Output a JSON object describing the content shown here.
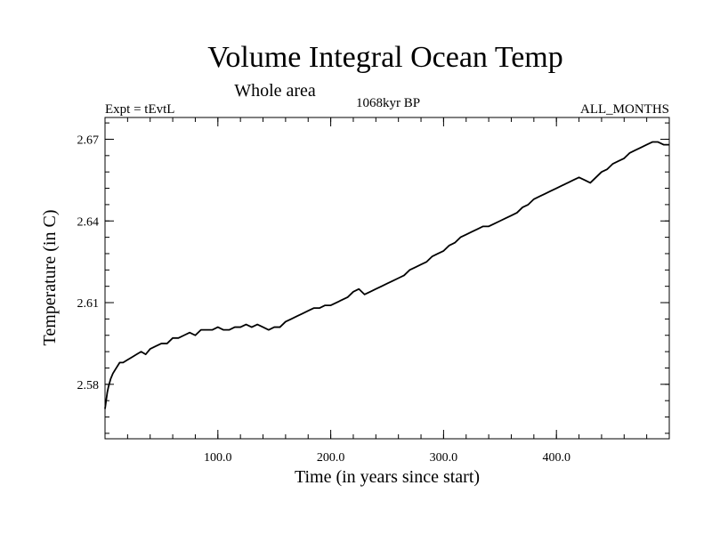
{
  "chart_data": {
    "type": "line",
    "title": "Volume Integral Ocean Temp",
    "subtitle": "Whole area",
    "experiment_label": "Expt = tEvtL",
    "period_label": "1068kyr BP",
    "months_label": "ALL_MONTHS",
    "xlabel": "Time (in years since start)",
    "ylabel": "Temperature (in C)",
    "xlim": [
      0,
      500
    ],
    "ylim": [
      2.56,
      2.678
    ],
    "x_ticks": [
      {
        "value": 100,
        "label": "100.0"
      },
      {
        "value": 200,
        "label": "200.0"
      },
      {
        "value": 300,
        "label": "300.0"
      },
      {
        "value": 400,
        "label": "400.0"
      }
    ],
    "y_ticks": [
      {
        "value": 2.58,
        "label": "2.58"
      },
      {
        "value": 2.61,
        "label": "2.61"
      },
      {
        "value": 2.64,
        "label": "2.64"
      },
      {
        "value": 2.67,
        "label": "2.67"
      }
    ],
    "x_minor_step": 20,
    "y_minor_step": 0.006,
    "grid": false,
    "legend": "none",
    "series": [
      {
        "name": "Volume integral ocean temperature",
        "x": [
          0,
          1,
          2,
          3,
          5,
          7,
          10,
          13,
          16,
          20,
          24,
          28,
          32,
          36,
          40,
          45,
          50,
          55,
          60,
          65,
          70,
          75,
          80,
          85,
          90,
          95,
          100,
          105,
          110,
          115,
          120,
          125,
          130,
          135,
          140,
          145,
          150,
          155,
          160,
          165,
          170,
          175,
          180,
          185,
          190,
          195,
          200,
          205,
          210,
          215,
          220,
          225,
          230,
          235,
          240,
          245,
          250,
          255,
          260,
          265,
          270,
          275,
          280,
          285,
          290,
          295,
          300,
          305,
          310,
          315,
          320,
          325,
          330,
          335,
          340,
          345,
          350,
          355,
          360,
          365,
          370,
          375,
          380,
          385,
          390,
          395,
          400,
          405,
          410,
          415,
          420,
          425,
          430,
          435,
          440,
          445,
          450,
          455,
          460,
          465,
          470,
          475,
          480,
          485,
          490,
          495,
          500
        ],
        "values": [
          2.571,
          2.574,
          2.577,
          2.579,
          2.582,
          2.584,
          2.586,
          2.588,
          2.588,
          2.589,
          2.59,
          2.591,
          2.592,
          2.591,
          2.593,
          2.594,
          2.595,
          2.595,
          2.597,
          2.597,
          2.598,
          2.599,
          2.598,
          2.6,
          2.6,
          2.6,
          2.601,
          2.6,
          2.6,
          2.601,
          2.601,
          2.602,
          2.601,
          2.602,
          2.601,
          2.6,
          2.601,
          2.601,
          2.603,
          2.604,
          2.605,
          2.606,
          2.607,
          2.608,
          2.608,
          2.609,
          2.609,
          2.61,
          2.611,
          2.612,
          2.614,
          2.615,
          2.613,
          2.614,
          2.615,
          2.616,
          2.617,
          2.618,
          2.619,
          2.62,
          2.622,
          2.623,
          2.624,
          2.625,
          2.627,
          2.628,
          2.629,
          2.631,
          2.632,
          2.634,
          2.635,
          2.636,
          2.637,
          2.638,
          2.638,
          2.639,
          2.64,
          2.641,
          2.642,
          2.643,
          2.645,
          2.646,
          2.648,
          2.649,
          2.65,
          2.651,
          2.652,
          2.653,
          2.654,
          2.655,
          2.656,
          2.655,
          2.654,
          2.656,
          2.658,
          2.659,
          2.661,
          2.662,
          2.663,
          2.665,
          2.666,
          2.667,
          2.668,
          2.669,
          2.669,
          2.668,
          2.668
        ]
      }
    ]
  }
}
